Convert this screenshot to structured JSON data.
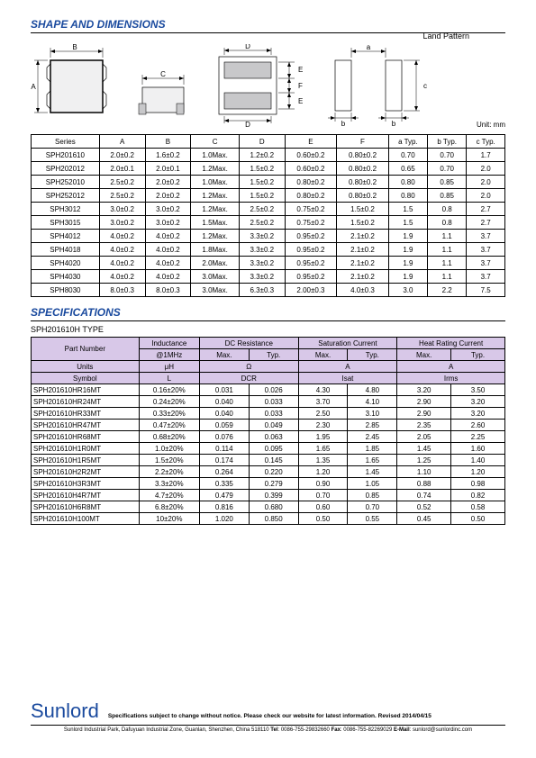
{
  "sections": {
    "shape": "SHAPE AND DIMENSIONS",
    "specs": "SPECIFICATIONS"
  },
  "land_pattern_label": "Land Pattern",
  "unit_label": "Unit: mm",
  "dim_table": {
    "headers": [
      "Series",
      "A",
      "B",
      "C",
      "D",
      "E",
      "F",
      "a Typ.",
      "b Typ.",
      "c Typ."
    ],
    "rows": [
      [
        "SPH201610",
        "2.0±0.2",
        "1.6±0.2",
        "1.0Max.",
        "1.2±0.2",
        "0.60±0.2",
        "0.80±0.2",
        "0.70",
        "0.70",
        "1.7"
      ],
      [
        "SPH202012",
        "2.0±0.1",
        "2.0±0.1",
        "1.2Max.",
        "1.5±0.2",
        "0.60±0.2",
        "0.80±0.2",
        "0.65",
        "0.70",
        "2.0"
      ],
      [
        "SPH252010",
        "2.5±0.2",
        "2.0±0.2",
        "1.0Max.",
        "1.5±0.2",
        "0.80±0.2",
        "0.80±0.2",
        "0.80",
        "0.85",
        "2.0"
      ],
      [
        "SPH252012",
        "2.5±0.2",
        "2.0±0.2",
        "1.2Max.",
        "1.5±0.2",
        "0.80±0.2",
        "0.80±0.2",
        "0.80",
        "0.85",
        "2.0"
      ],
      [
        "SPH3012",
        "3.0±0.2",
        "3.0±0.2",
        "1.2Max.",
        "2.5±0.2",
        "0.75±0.2",
        "1.5±0.2",
        "1.5",
        "0.8",
        "2.7"
      ],
      [
        "SPH3015",
        "3.0±0.2",
        "3.0±0.2",
        "1.5Max.",
        "2.5±0.2",
        "0.75±0.2",
        "1.5±0.2",
        "1.5",
        "0.8",
        "2.7"
      ],
      [
        "SPH4012",
        "4.0±0.2",
        "4.0±0.2",
        "1.2Max.",
        "3.3±0.2",
        "0.95±0.2",
        "2.1±0.2",
        "1.9",
        "1.1",
        "3.7"
      ],
      [
        "SPH4018",
        "4.0±0.2",
        "4.0±0.2",
        "1.8Max.",
        "3.3±0.2",
        "0.95±0.2",
        "2.1±0.2",
        "1.9",
        "1.1",
        "3.7"
      ],
      [
        "SPH4020",
        "4.0±0.2",
        "4.0±0.2",
        "2.0Max.",
        "3.3±0.2",
        "0.95±0.2",
        "2.1±0.2",
        "1.9",
        "1.1",
        "3.7"
      ],
      [
        "SPH4030",
        "4.0±0.2",
        "4.0±0.2",
        "3.0Max.",
        "3.3±0.2",
        "0.95±0.2",
        "2.1±0.2",
        "1.9",
        "1.1",
        "3.7"
      ],
      [
        "SPH8030",
        "8.0±0.3",
        "8.0±0.3",
        "3.0Max.",
        "6.3±0.3",
        "2.00±0.3",
        "4.0±0.3",
        "3.0",
        "2.2",
        "7.5"
      ]
    ]
  },
  "spec_subtitle": "SPH201610H TYPE",
  "spec_table": {
    "header_row1": [
      "Part Number",
      "Inductance",
      "DC Resistance",
      "",
      "Saturation Current",
      "",
      "Heat Rating Current",
      ""
    ],
    "header_row2": [
      "",
      "@1MHz",
      "Max.",
      "Typ.",
      "Max.",
      "Typ.",
      "Max.",
      "Typ."
    ],
    "units_row": [
      "Units",
      "μH",
      "Ω",
      "",
      "A",
      "",
      "A",
      ""
    ],
    "symbol_row": [
      "Symbol",
      "L",
      "DCR",
      "",
      "Isat",
      "",
      "Irms",
      ""
    ],
    "col_widths": [
      "96",
      "54",
      "44",
      "44",
      "44",
      "44",
      "48",
      "48"
    ],
    "rows": [
      [
        "SPH201610HR16MT",
        "0.16±20%",
        "0.031",
        "0.026",
        "4.30",
        "4.80",
        "3.20",
        "3.50"
      ],
      [
        "SPH201610HR24MT",
        "0.24±20%",
        "0.040",
        "0.033",
        "3.70",
        "4.10",
        "2.90",
        "3.20"
      ],
      [
        "SPH201610HR33MT",
        "0.33±20%",
        "0.040",
        "0.033",
        "2.50",
        "3.10",
        "2.90",
        "3.20"
      ],
      [
        "SPH201610HR47MT",
        "0.47±20%",
        "0.059",
        "0.049",
        "2.30",
        "2.85",
        "2.35",
        "2.60"
      ],
      [
        "SPH201610HR68MT",
        "0.68±20%",
        "0.076",
        "0.063",
        "1.95",
        "2.45",
        "2.05",
        "2.25"
      ],
      [
        "SPH201610H1R0MT",
        "1.0±20%",
        "0.114",
        "0.095",
        "1.65",
        "1.85",
        "1.45",
        "1.60"
      ],
      [
        "SPH201610H1R5MT",
        "1.5±20%",
        "0.174",
        "0.145",
        "1.35",
        "1.65",
        "1.25",
        "1.40"
      ],
      [
        "SPH201610H2R2MT",
        "2.2±20%",
        "0.264",
        "0.220",
        "1.20",
        "1.45",
        "1.10",
        "1.20"
      ],
      [
        "SPH201610H3R3MT",
        "3.3±20%",
        "0.335",
        "0.279",
        "0.90",
        "1.05",
        "0.88",
        "0.98"
      ],
      [
        "SPH201610H4R7MT",
        "4.7±20%",
        "0.479",
        "0.399",
        "0.70",
        "0.85",
        "0.74",
        "0.82"
      ],
      [
        "SPH201610H6R8MT",
        "6.8±20%",
        "0.816",
        "0.680",
        "0.60",
        "0.70",
        "0.52",
        "0.58"
      ],
      [
        "SPH201610H100MT",
        "10±20%",
        "1.020",
        "0.850",
        "0.50",
        "0.55",
        "0.45",
        "0.50"
      ]
    ]
  },
  "footer": {
    "brand": "Sunlord",
    "note": "Specifications subject to change without notice. Please check our website for latest information.     Revised 2014/04/15",
    "addr_pre": "Sunlord Industrial Park, Dafuyuan Industrial Zone, Guanlan, Shenzhen, China 518110 ",
    "tel_label": "Tel",
    "tel": ": 0086-755-29832660 ",
    "fax_label": "Fax",
    "fax": ": 0086-755-82269029 ",
    "email_label": "E-Mail",
    "email": ": sunlord@sunlordinc.com"
  },
  "diagram_labels": {
    "A": "A",
    "B": "B",
    "C": "C",
    "D": "D",
    "E": "E",
    "F": "F",
    "a": "a",
    "b": "b",
    "c": "c"
  },
  "colors": {
    "brand_blue": "#1a4a9e",
    "spec_header_bg": "#d8c8e8",
    "pad_fill": "#c8c8ca",
    "body_fill": "#f0f0f1"
  }
}
